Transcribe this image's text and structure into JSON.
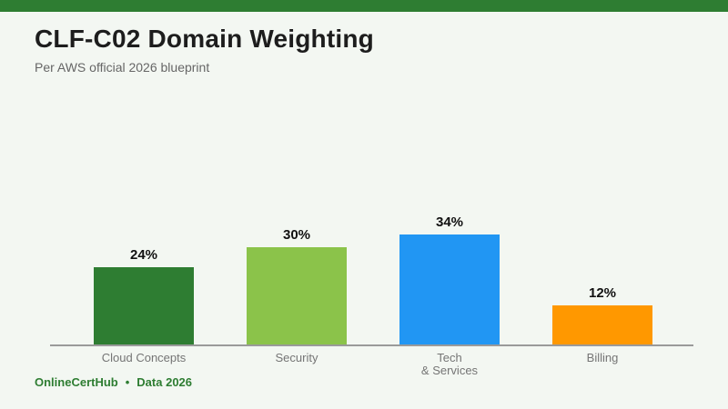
{
  "page": {
    "background_color": "#f3f7f2",
    "accent_bar_color": "#2e7d32"
  },
  "header": {
    "title": "CLF-C02 Domain Weighting",
    "subtitle": "Per AWS official 2026 blueprint"
  },
  "footer": {
    "brand": "OnlineCertHub",
    "separator": "•",
    "note": "Data 2026"
  },
  "chart_data": {
    "type": "bar",
    "title": "CLF-C02 Domain Weighting",
    "subtitle": "Per AWS official 2026 blueprint",
    "categories": [
      "Cloud Concepts",
      "Security",
      "Tech\n& Services",
      "Billing"
    ],
    "values": [
      24,
      30,
      34,
      12
    ],
    "value_labels": [
      "24%",
      "30%",
      "34%",
      "12%"
    ],
    "bar_colors": [
      "#2e7d32",
      "#8bc34a",
      "#2196f3",
      "#ff9800"
    ],
    "xlabel": "",
    "ylabel": "",
    "ylim": [
      0,
      40
    ],
    "grid": false,
    "legend": false,
    "axis_line_color": "#9a9a9a",
    "value_label_position": "above-bar"
  }
}
